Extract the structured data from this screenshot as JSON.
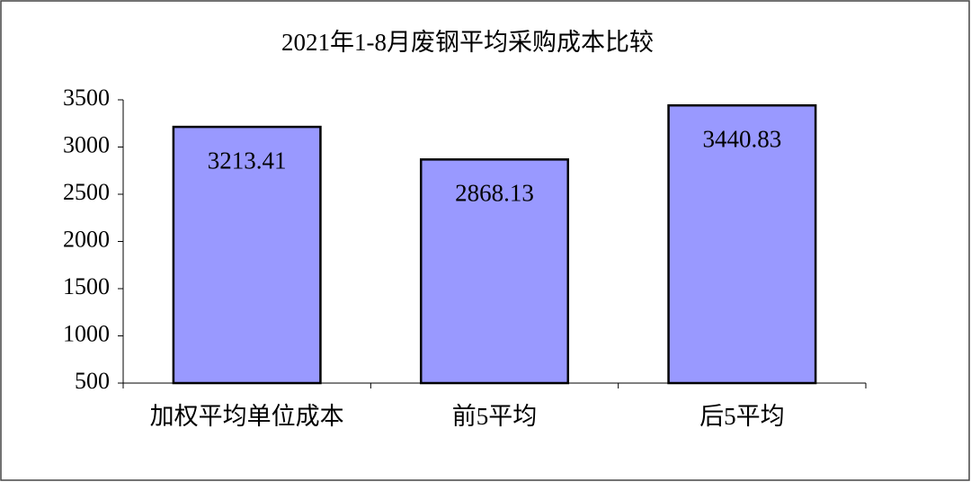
{
  "chart_data": {
    "type": "bar",
    "title": "2021年1-8月废钢平均采购成本比较",
    "categories": [
      "加权平均单位成本",
      "前5平均",
      "后5平均"
    ],
    "values": [
      3213.41,
      2868.13,
      3440.83
    ],
    "color": "#9999ff",
    "ylim": [
      500,
      3500
    ],
    "yticks": [
      500,
      1000,
      1500,
      2000,
      2500,
      3000,
      3500
    ]
  }
}
